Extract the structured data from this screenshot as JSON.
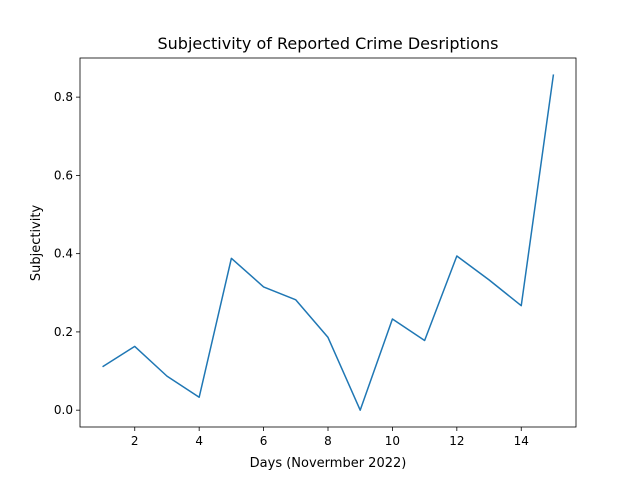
{
  "chart_data": {
    "type": "line",
    "title": "Subjectivity of Reported Crime Desriptions",
    "xlabel": "Days (Novermber 2022)",
    "ylabel": "Subjectivity",
    "xlim": [
      0.3,
      15.7
    ],
    "ylim": [
      -0.043,
      0.9
    ],
    "x_ticks": [
      2,
      4,
      6,
      8,
      10,
      12,
      14
    ],
    "y_ticks": [
      0.0,
      0.2,
      0.4,
      0.6,
      0.8
    ],
    "y_tick_labels": [
      "0.0",
      "0.2",
      "0.4",
      "0.6",
      "0.8"
    ],
    "grid": false,
    "series": [
      {
        "color": "#1f77b4",
        "x": [
          1,
          2,
          3,
          4,
          5,
          6,
          7,
          8,
          9,
          10,
          11,
          12,
          13,
          14,
          15
        ],
        "y": [
          0.111,
          0.163,
          0.087,
          0.033,
          0.388,
          0.315,
          0.282,
          0.186,
          0.0,
          0.233,
          0.178,
          0.394,
          0.333,
          0.267,
          0.858
        ]
      }
    ]
  }
}
